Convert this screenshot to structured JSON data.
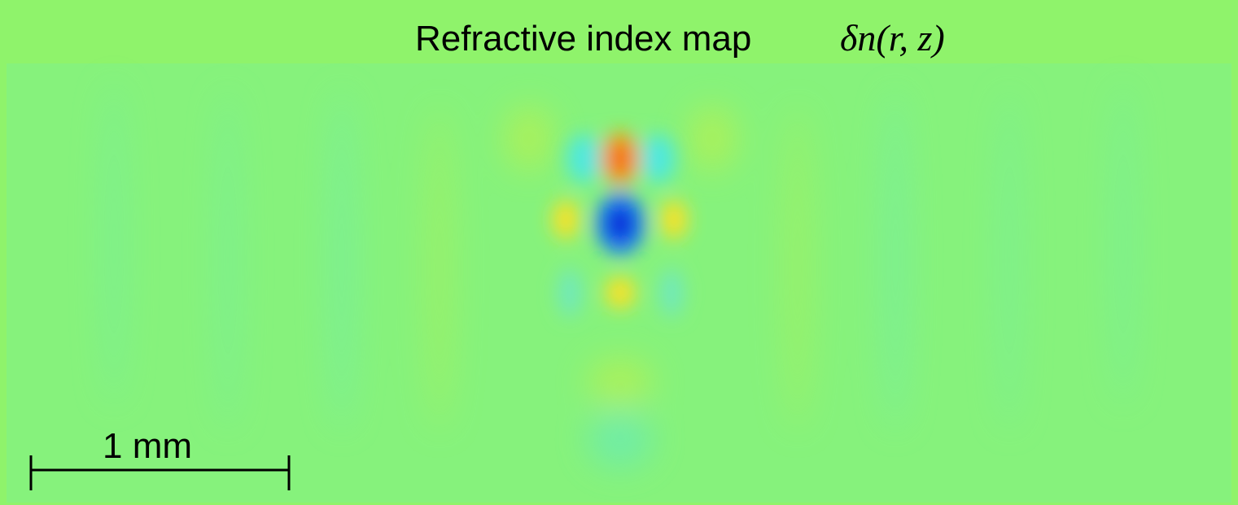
{
  "title": {
    "text": "Refractive index map",
    "math": "δn(r, z)"
  },
  "scale_bar": {
    "label": "1 mm"
  }
}
